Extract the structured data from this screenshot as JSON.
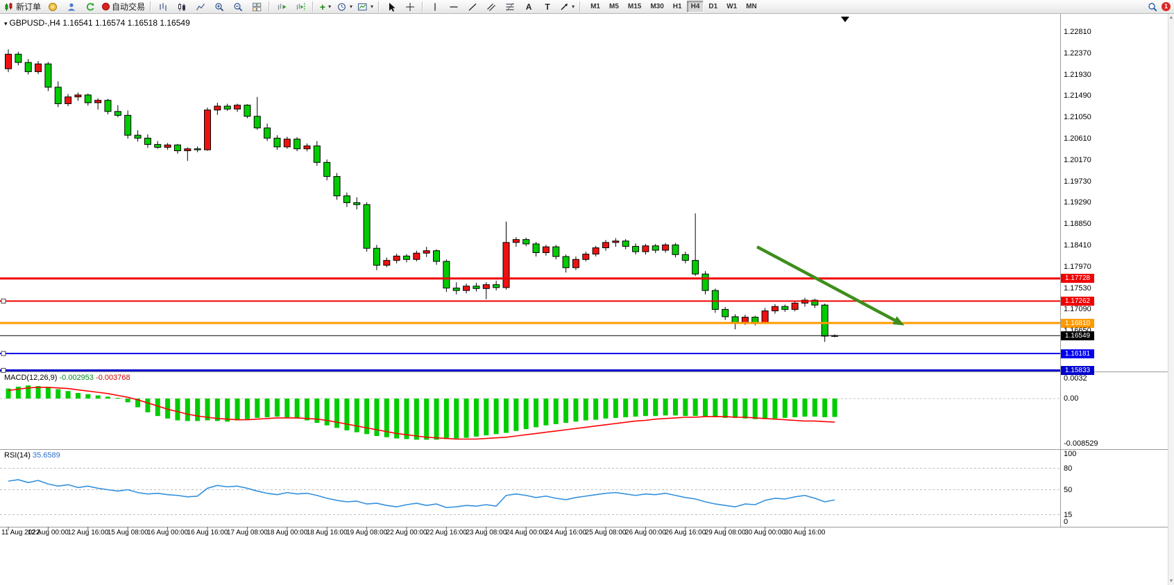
{
  "toolbar": {
    "new_order_label": "新订单",
    "autotrading_label": "自动交易",
    "timeframes": [
      "M1",
      "M5",
      "M15",
      "M30",
      "H1",
      "H4",
      "D1",
      "W1",
      "MN"
    ],
    "active_timeframe": "H4",
    "notification_count": "1",
    "icons": [
      "new-order-candles",
      "market-watch",
      "profile",
      "refresh",
      "autotrading-status-dot",
      "bar-chart",
      "candlestick-chart",
      "line-chart",
      "zoom-in",
      "zoom-out",
      "tile-windows",
      "auto-scroll",
      "chart-shift",
      "add-indicator-plus",
      "timeframe-clock",
      "chart-template",
      "cursor",
      "crosshair",
      "vertical-line",
      "horizontal-line",
      "trendline",
      "equidistant-channel",
      "fibonacci",
      "text-a",
      "text-label-t",
      "arrow-tools",
      "dropdown-caret",
      "search",
      "notification-circle"
    ]
  },
  "chart_header": {
    "symbol": "GBPUSD-,H4",
    "ohlc": "1.16541 1.16574 1.16518 1.16549"
  },
  "chart_data": {
    "type": "candlestick",
    "symbol": "GBPUSD-",
    "timeframe": "H4",
    "price_axis_labels": [
      "1.22810",
      "1.22370",
      "1.21930",
      "1.21490",
      "1.21050",
      "1.20610",
      "1.20170",
      "1.19730",
      "1.19290",
      "1.18850",
      "1.18410",
      "1.17970",
      "1.17530",
      "1.17090",
      "1.16650"
    ],
    "time_axis_labels": [
      "11 Aug 2022",
      "12 Aug 00:00",
      "12 Aug 16:00",
      "15 Aug 08:00",
      "16 Aug 00:00",
      "16 Aug 16:00",
      "17 Aug 08:00",
      "18 Aug 00:00",
      "18 Aug 16:00",
      "19 Aug 08:00",
      "22 Aug 00:00",
      "22 Aug 16:00",
      "23 Aug 08:00",
      "24 Aug 00:00",
      "24 Aug 16:00",
      "25 Aug 08:00",
      "26 Aug 00:00",
      "26 Aug 16:00",
      "29 Aug 08:00",
      "30 Aug 00:00",
      "30 Aug 16:00"
    ],
    "horizontal_lines": [
      {
        "label": "1.17728",
        "price": 1.17728,
        "color": "#f00000",
        "width": 3,
        "handle": false
      },
      {
        "label": "1.17262",
        "price": 1.17262,
        "color": "#f00000",
        "width": 2,
        "handle": true
      },
      {
        "label": "1.16810",
        "price": 1.1681,
        "color": "#ff9900",
        "width": 3,
        "handle": false
      },
      {
        "label": "1.16549",
        "price": 1.16549,
        "color": "#000000",
        "width": 1,
        "handle": false,
        "kind": "bid"
      },
      {
        "label": "1.16181",
        "price": 1.16181,
        "color": "#0000ee",
        "width": 2,
        "handle": true
      },
      {
        "label": "1.15833",
        "price": 1.15833,
        "color": "#0000cc",
        "width": 3,
        "handle": true
      }
    ],
    "trend_arrow": {
      "from_bar": 75.2,
      "from_price": 1.1838,
      "to_bar": 90,
      "to_price": 1.1676
    },
    "candles": [
      [
        1.2205,
        1.2245,
        1.2198,
        1.2235
      ],
      [
        1.2235,
        1.224,
        1.2212,
        1.2218
      ],
      [
        1.2218,
        1.2225,
        1.2193,
        1.2199
      ],
      [
        1.2199,
        1.2221,
        1.2194,
        1.2215
      ],
      [
        1.2215,
        1.2219,
        1.2159,
        1.2167
      ],
      [
        1.2167,
        1.2179,
        1.2126,
        1.2133
      ],
      [
        1.2133,
        1.2153,
        1.2128,
        1.2147
      ],
      [
        1.2147,
        1.2156,
        1.2139,
        1.2151
      ],
      [
        1.2151,
        1.2154,
        1.2129,
        1.2135
      ],
      [
        1.2135,
        1.2144,
        1.2121,
        1.214
      ],
      [
        1.214,
        1.2143,
        1.2111,
        1.2117
      ],
      [
        1.2117,
        1.213,
        1.2105,
        1.2109
      ],
      [
        1.2109,
        1.2119,
        1.2061,
        1.2068
      ],
      [
        1.2068,
        1.2078,
        1.2055,
        1.2062
      ],
      [
        1.2062,
        1.207,
        1.2042,
        1.2049
      ],
      [
        1.2049,
        1.2056,
        1.204,
        1.2043
      ],
      [
        1.2043,
        1.2052,
        1.2038,
        1.2048
      ],
      [
        1.2048,
        1.205,
        1.203,
        1.2036
      ],
      [
        1.2036,
        1.2043,
        1.2015,
        1.204
      ],
      [
        1.204,
        1.2045,
        1.2033,
        1.2038
      ],
      [
        1.2038,
        1.2125,
        1.2036,
        1.212
      ],
      [
        1.212,
        1.2135,
        1.211,
        1.2128
      ],
      [
        1.2128,
        1.2133,
        1.2118,
        1.2122
      ],
      [
        1.2122,
        1.2133,
        1.2116,
        1.213
      ],
      [
        1.213,
        1.2132,
        1.2103,
        1.2107
      ],
      [
        1.2107,
        1.2147,
        1.2079,
        1.2083
      ],
      [
        1.2083,
        1.2092,
        1.2056,
        1.2062
      ],
      [
        1.2062,
        1.2068,
        1.2038,
        1.2044
      ],
      [
        1.2044,
        1.2065,
        1.204,
        1.206
      ],
      [
        1.206,
        1.2064,
        1.2035,
        1.204
      ],
      [
        1.204,
        1.2051,
        1.2035,
        1.2046
      ],
      [
        1.2046,
        1.2056,
        1.2005,
        1.2012
      ],
      [
        1.2012,
        1.2018,
        1.1975,
        1.1983
      ],
      [
        1.1983,
        1.199,
        1.1935,
        1.1943
      ],
      [
        1.1943,
        1.195,
        1.192,
        1.1929
      ],
      [
        1.1929,
        1.194,
        1.1915,
        1.1925
      ],
      [
        1.1925,
        1.193,
        1.1828,
        1.1835
      ],
      [
        1.1835,
        1.1842,
        1.179,
        1.18
      ],
      [
        1.18,
        1.1816,
        1.1796,
        1.181
      ],
      [
        1.181,
        1.1824,
        1.1804,
        1.1819
      ],
      [
        1.1819,
        1.1823,
        1.1806,
        1.1812
      ],
      [
        1.1812,
        1.183,
        1.1808,
        1.1825
      ],
      [
        1.1825,
        1.1838,
        1.1817,
        1.183
      ],
      [
        1.183,
        1.1833,
        1.1801,
        1.1808
      ],
      [
        1.1808,
        1.1812,
        1.1745,
        1.1753
      ],
      [
        1.1753,
        1.1765,
        1.174,
        1.1748
      ],
      [
        1.1748,
        1.1762,
        1.1742,
        1.1757
      ],
      [
        1.1757,
        1.1764,
        1.1746,
        1.1752
      ],
      [
        1.1752,
        1.1765,
        1.173,
        1.176
      ],
      [
        1.176,
        1.1768,
        1.1748,
        1.1754
      ],
      [
        1.1754,
        1.189,
        1.175,
        1.1847
      ],
      [
        1.1847,
        1.1858,
        1.1838,
        1.1853
      ],
      [
        1.1853,
        1.1857,
        1.1839,
        1.1844
      ],
      [
        1.1844,
        1.1848,
        1.1818,
        1.1826
      ],
      [
        1.1826,
        1.1842,
        1.182,
        1.1838
      ],
      [
        1.1838,
        1.1842,
        1.1812,
        1.1818
      ],
      [
        1.1818,
        1.1822,
        1.1785,
        1.1795
      ],
      [
        1.1795,
        1.1818,
        1.179,
        1.1812
      ],
      [
        1.1812,
        1.1828,
        1.1808,
        1.1823
      ],
      [
        1.1823,
        1.184,
        1.1818,
        1.1836
      ],
      [
        1.1836,
        1.1852,
        1.183,
        1.1847
      ],
      [
        1.1847,
        1.1856,
        1.1838,
        1.185
      ],
      [
        1.185,
        1.1854,
        1.1833,
        1.1839
      ],
      [
        1.1839,
        1.1845,
        1.1822,
        1.1828
      ],
      [
        1.1828,
        1.1844,
        1.1822,
        1.184
      ],
      [
        1.184,
        1.1844,
        1.1825,
        1.1831
      ],
      [
        1.1831,
        1.1846,
        1.1826,
        1.1842
      ],
      [
        1.1842,
        1.1846,
        1.1816,
        1.1822
      ],
      [
        1.1822,
        1.1828,
        1.1804,
        1.181
      ],
      [
        1.181,
        1.1907,
        1.1778,
        1.1782
      ],
      [
        1.1782,
        1.1788,
        1.174,
        1.1748
      ],
      [
        1.1748,
        1.1752,
        1.1702,
        1.1709
      ],
      [
        1.1709,
        1.1714,
        1.1687,
        1.1694
      ],
      [
        1.1694,
        1.1699,
        1.1668,
        1.1681
      ],
      [
        1.1681,
        1.1698,
        1.1677,
        1.1693
      ],
      [
        1.1693,
        1.1696,
        1.1676,
        1.1682
      ],
      [
        1.1682,
        1.1712,
        1.1679,
        1.1706
      ],
      [
        1.1706,
        1.172,
        1.17,
        1.1715
      ],
      [
        1.1715,
        1.1719,
        1.1704,
        1.1709
      ],
      [
        1.1709,
        1.1726,
        1.1705,
        1.1722
      ],
      [
        1.1722,
        1.1733,
        1.1715,
        1.1728
      ],
      [
        1.1728,
        1.1731,
        1.1712,
        1.1718
      ],
      [
        1.1718,
        1.1721,
        1.1642,
        1.1654
      ],
      [
        1.16541,
        1.16574,
        1.16518,
        1.16549
      ]
    ],
    "macd": {
      "title": "MACD(12,26,9)",
      "value_main": "-0.002953",
      "value_signal": "-0.003768",
      "axis": [
        "0.0032",
        "0.00",
        "-0.008529"
      ],
      "histogram": [
        0.0016,
        0.0019,
        0.0021,
        0.002,
        0.0018,
        0.0015,
        0.0012,
        0.0009,
        0.0007,
        0.0005,
        0.0003,
        0.0001,
        -0.0006,
        -0.0014,
        -0.0022,
        -0.0028,
        -0.0032,
        -0.0035,
        -0.0036,
        -0.0036,
        -0.0035,
        -0.0036,
        -0.0037,
        -0.0035,
        -0.0033,
        -0.0031,
        -0.003,
        -0.0029,
        -0.003,
        -0.0032,
        -0.0035,
        -0.0039,
        -0.0043,
        -0.0047,
        -0.0051,
        -0.0054,
        -0.0057,
        -0.006,
        -0.0062,
        -0.0064,
        -0.0065,
        -0.0066,
        -0.0066,
        -0.0066,
        -0.0065,
        -0.0064,
        -0.0063,
        -0.0061,
        -0.0059,
        -0.0057,
        -0.0055,
        -0.0052,
        -0.0049,
        -0.0046,
        -0.0043,
        -0.0041,
        -0.0039,
        -0.0037,
        -0.0035,
        -0.0034,
        -0.0032,
        -0.0031,
        -0.003,
        -0.0029,
        -0.0028,
        -0.0028,
        -0.0027,
        -0.0027,
        -0.0028,
        -0.0028,
        -0.0029,
        -0.003,
        -0.0031,
        -0.0031,
        -0.0032,
        -0.0033,
        -0.0033,
        -0.0032,
        -0.0031,
        -0.003,
        -0.0029,
        -0.0029,
        -0.003,
        -0.002953
      ],
      "signal": [
        0.0013,
        0.0015,
        0.0017,
        0.0018,
        0.0018,
        0.0017,
        0.0016,
        0.0014,
        0.0012,
        0.001,
        0.0008,
        0.0005,
        0.0002,
        -0.0002,
        -0.0007,
        -0.0012,
        -0.0017,
        -0.0021,
        -0.0025,
        -0.0028,
        -0.003,
        -0.0032,
        -0.0033,
        -0.0034,
        -0.0034,
        -0.0033,
        -0.0032,
        -0.0031,
        -0.0031,
        -0.0031,
        -0.0032,
        -0.0033,
        -0.0035,
        -0.0038,
        -0.0041,
        -0.0044,
        -0.0047,
        -0.005,
        -0.0053,
        -0.0056,
        -0.0058,
        -0.006,
        -0.0062,
        -0.0063,
        -0.0064,
        -0.0065,
        -0.0065,
        -0.0065,
        -0.0064,
        -0.0063,
        -0.0062,
        -0.006,
        -0.0058,
        -0.0056,
        -0.0054,
        -0.0052,
        -0.005,
        -0.0048,
        -0.0046,
        -0.0044,
        -0.0042,
        -0.004,
        -0.0038,
        -0.0036,
        -0.0035,
        -0.0033,
        -0.0032,
        -0.0031,
        -0.003,
        -0.003,
        -0.0029,
        -0.0029,
        -0.0029,
        -0.003,
        -0.003,
        -0.0031,
        -0.0032,
        -0.0033,
        -0.0034,
        -0.0035,
        -0.0036,
        -0.0036,
        -0.0037,
        -0.003768
      ]
    },
    "rsi": {
      "title": "RSI(14)",
      "value": "35.6589",
      "axis": [
        "100",
        "80",
        "50",
        "15",
        "0"
      ],
      "levels": [
        80,
        50,
        15
      ],
      "series": [
        62,
        64,
        60,
        63,
        58,
        55,
        57,
        53,
        55,
        52,
        50,
        48,
        50,
        46,
        44,
        45,
        43,
        42,
        40,
        41,
        52,
        56,
        54,
        55,
        52,
        48,
        45,
        43,
        46,
        44,
        45,
        42,
        38,
        35,
        33,
        34,
        30,
        31,
        28,
        26,
        29,
        31,
        28,
        30,
        25,
        26,
        28,
        27,
        29,
        27,
        42,
        44,
        42,
        39,
        41,
        38,
        36,
        39,
        41,
        43,
        45,
        46,
        44,
        42,
        44,
        43,
        45,
        42,
        39,
        37,
        33,
        30,
        28,
        26,
        30,
        29,
        35,
        38,
        37,
        40,
        42,
        38,
        33,
        35.6589
      ]
    }
  },
  "colors": {
    "candle_up": "#ee1111",
    "candle_down": "#00cc00",
    "candle_outline": "#000000",
    "macd_histogram": "#00cc00",
    "macd_signal": "#ff0000",
    "rsi_line": "#3390dd",
    "arrow": "#3e8e1c",
    "resistance_line": "#f00000",
    "pivot_line": "#ff9900",
    "support_line": "#0000ee",
    "bid_line": "#000000",
    "axis_text": "#000000"
  }
}
